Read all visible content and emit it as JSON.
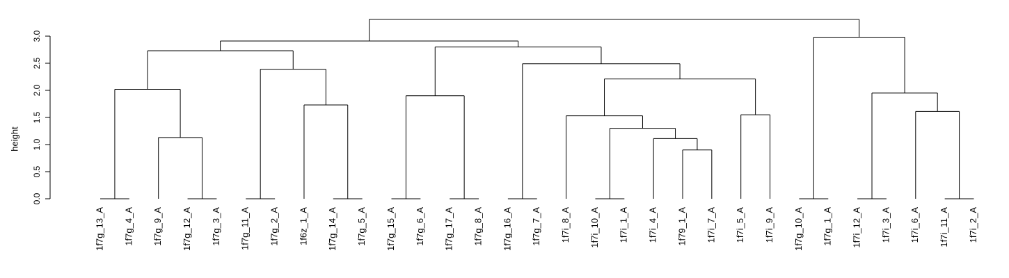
{
  "chart_data": {
    "type": "dendrogram",
    "ylabel": "height",
    "ylim": [
      0,
      3.25
    ],
    "y_ticks": [
      0.0,
      0.5,
      1.0,
      1.5,
      2.0,
      2.5,
      3.0
    ],
    "y_tick_labels": [
      "0.0",
      "0.5",
      "1.0",
      "1.5",
      "2.0",
      "2.5",
      "3.0"
    ],
    "leaves": [
      "1f7g_13_A",
      "1f7g_4_A",
      "1f7g_9_A",
      "1f7g_12_A",
      "1f7g_3_A",
      "1f7g_11_A",
      "1f7g_2_A",
      "1f6z_1_A",
      "1f7g_14_A",
      "1f7g_5_A",
      "1f7g_15_A",
      "1f7g_6_A",
      "1f7g_17_A",
      "1f7g_8_A",
      "1f7g_16_A",
      "1f7g_7_A",
      "1f7i_8_A",
      "1f7i_10_A",
      "1f7i_1_A",
      "1f7i_4_A",
      "1f79_1_A",
      "1f7i_7_A",
      "1f7i_5_A",
      "1f7i_9_A",
      "1f7g_10_A",
      "1f7g_1_A",
      "1f7i_12_A",
      "1f7i_3_A",
      "1f7i_6_A",
      "1f7i_11_A",
      "1f7i_2_A"
    ],
    "merges": [
      {
        "id": "m1",
        "left": {
          "leaf": 0
        },
        "right": {
          "leaf": 1
        },
        "height": 0.0
      },
      {
        "id": "m2",
        "left": {
          "leaf": 3
        },
        "right": {
          "leaf": 4
        },
        "height": 0.0
      },
      {
        "id": "m3",
        "left": {
          "leaf": 2
        },
        "right": {
          "node": "m2"
        },
        "height": 1.13
      },
      {
        "id": "m4",
        "left": {
          "node": "m1"
        },
        "right": {
          "node": "m3"
        },
        "height": 2.02
      },
      {
        "id": "m5",
        "left": {
          "leaf": 5
        },
        "right": {
          "leaf": 6
        },
        "height": 0.0
      },
      {
        "id": "m6",
        "left": {
          "leaf": 8
        },
        "right": {
          "leaf": 9
        },
        "height": 0.0
      },
      {
        "id": "m7",
        "left": {
          "leaf": 7
        },
        "right": {
          "node": "m6"
        },
        "height": 1.73
      },
      {
        "id": "m8",
        "left": {
          "node": "m5"
        },
        "right": {
          "node": "m7"
        },
        "height": 2.39
      },
      {
        "id": "m9",
        "left": {
          "node": "m4"
        },
        "right": {
          "node": "m8"
        },
        "height": 2.73
      },
      {
        "id": "m10",
        "left": {
          "leaf": 10
        },
        "right": {
          "leaf": 11
        },
        "height": 0.0
      },
      {
        "id": "m11",
        "left": {
          "leaf": 12
        },
        "right": {
          "leaf": 13
        },
        "height": 0.0
      },
      {
        "id": "m12",
        "left": {
          "node": "m10"
        },
        "right": {
          "node": "m11"
        },
        "height": 1.9
      },
      {
        "id": "m13",
        "left": {
          "leaf": 14
        },
        "right": {
          "leaf": 15
        },
        "height": 0.0
      },
      {
        "id": "m14",
        "left": {
          "leaf": 17
        },
        "right": {
          "leaf": 18
        },
        "height": 0.0
      },
      {
        "id": "m15",
        "left": {
          "leaf": 20
        },
        "right": {
          "leaf": 21
        },
        "height": 0.9
      },
      {
        "id": "m16",
        "left": {
          "leaf": 19
        },
        "right": {
          "node": "m15"
        },
        "height": 1.11
      },
      {
        "id": "m17",
        "left": {
          "node": "m14"
        },
        "right": {
          "node": "m16"
        },
        "height": 1.3
      },
      {
        "id": "m18",
        "left": {
          "leaf": 16
        },
        "right": {
          "node": "m17"
        },
        "height": 1.53
      },
      {
        "id": "m19",
        "left": {
          "leaf": 22
        },
        "right": {
          "leaf": 23
        },
        "height": 1.55
      },
      {
        "id": "m20",
        "left": {
          "node": "m18"
        },
        "right": {
          "node": "m19"
        },
        "height": 2.21
      },
      {
        "id": "m21",
        "left": {
          "node": "m13"
        },
        "right": {
          "node": "m20"
        },
        "height": 2.49
      },
      {
        "id": "m22",
        "left": {
          "node": "m12"
        },
        "right": {
          "node": "m21"
        },
        "height": 2.8
      },
      {
        "id": "m23",
        "left": {
          "node": "m9"
        },
        "right": {
          "node": "m22"
        },
        "height": 2.91
      },
      {
        "id": "m24",
        "left": {
          "leaf": 24
        },
        "right": {
          "leaf": 25
        },
        "height": 0.0
      },
      {
        "id": "m25",
        "left": {
          "leaf": 26
        },
        "right": {
          "leaf": 27
        },
        "height": 0.0
      },
      {
        "id": "m26",
        "left": {
          "leaf": 29
        },
        "right": {
          "leaf": 30
        },
        "height": 0.0
      },
      {
        "id": "m27",
        "left": {
          "leaf": 28
        },
        "right": {
          "node": "m26"
        },
        "height": 1.61
      },
      {
        "id": "m28",
        "left": {
          "node": "m25"
        },
        "right": {
          "node": "m27"
        },
        "height": 1.95
      },
      {
        "id": "m29",
        "left": {
          "node": "m24"
        },
        "right": {
          "node": "m28"
        },
        "height": 2.98
      },
      {
        "id": "m30",
        "left": {
          "node": "m23"
        },
        "right": {
          "node": "m29"
        },
        "height": 3.31
      }
    ],
    "colors": {
      "line": "#000000",
      "background": "#ffffff"
    },
    "grid": false,
    "legend": "none"
  }
}
